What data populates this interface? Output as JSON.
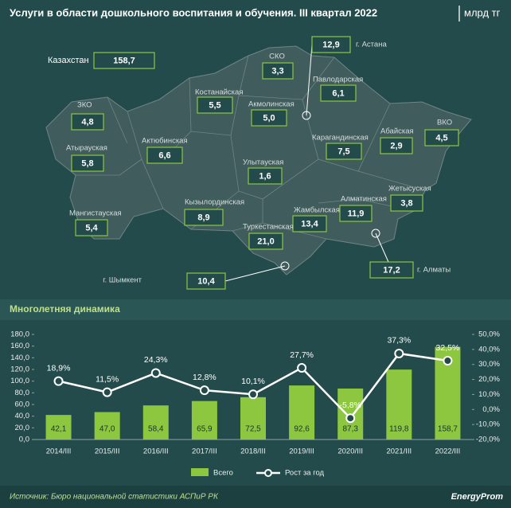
{
  "header": {
    "title": "Услуги в области дошкольного воспитания и обучения. III квартал 2022",
    "unit": "млрд тг"
  },
  "map": {
    "regions": [
      {
        "name": "Казахстан",
        "value": 158.7,
        "value_label": "158,7"
      },
      {
        "name": "СКО",
        "value": 3.3,
        "value_label": "3,3"
      },
      {
        "name": "г. Астана",
        "value": 12.9,
        "value_label": "12,9"
      },
      {
        "name": "Павлодарская",
        "value": 6.1,
        "value_label": "6,1"
      },
      {
        "name": "ЗКО",
        "value": 4.8,
        "value_label": "4,8"
      },
      {
        "name": "Костанайская",
        "value": 5.5,
        "value_label": "5,5"
      },
      {
        "name": "Акмолинская",
        "value": 5.0,
        "value_label": "5,0"
      },
      {
        "name": "Атырауская",
        "value": 5.8,
        "value_label": "5,8"
      },
      {
        "name": "Актюбинская",
        "value": 6.6,
        "value_label": "6,6"
      },
      {
        "name": "Карагандинская",
        "value": 7.5,
        "value_label": "7,5"
      },
      {
        "name": "Абайская",
        "value": 2.9,
        "value_label": "2,9"
      },
      {
        "name": "ВКО",
        "value": 4.5,
        "value_label": "4,5"
      },
      {
        "name": "Улытауская",
        "value": 1.6,
        "value_label": "1,6"
      },
      {
        "name": "Мангистауская",
        "value": 5.4,
        "value_label": "5,4"
      },
      {
        "name": "Кызылординская",
        "value": 8.9,
        "value_label": "8,9"
      },
      {
        "name": "Жетысуская",
        "value": 3.8,
        "value_label": "3,8"
      },
      {
        "name": "Алматинская",
        "value": 11.9,
        "value_label": "11,9"
      },
      {
        "name": "Жамбылская",
        "value": 13.4,
        "value_label": "13,4"
      },
      {
        "name": "Туркестанская",
        "value": 21.0,
        "value_label": "21,0"
      },
      {
        "name": "г. Алматы",
        "value": 17.2,
        "value_label": "17,2"
      },
      {
        "name": "г. Шымкент",
        "value": 10.4,
        "value_label": "10,4"
      }
    ]
  },
  "chart_data": {
    "type": "bar",
    "title": "Многолетняя динамика",
    "categories": [
      "2014/III",
      "2015/III",
      "2016/III",
      "2017/III",
      "2018/III",
      "2019/III",
      "2020/III",
      "2021/III",
      "2022/III"
    ],
    "series": [
      {
        "name": "Всего",
        "type": "bar",
        "color": "#8dc63f",
        "values": [
          42.1,
          47.0,
          58.4,
          65.9,
          72.5,
          92.6,
          87.3,
          119.8,
          158.7
        ],
        "value_labels": [
          "42,1",
          "47,0",
          "58,4",
          "65,9",
          "72,5",
          "92,6",
          "87,3",
          "119,8",
          "158,7"
        ]
      },
      {
        "name": "Рост за год",
        "type": "line",
        "axis": "y2",
        "color": "#ffffff",
        "values": [
          18.9,
          11.5,
          24.3,
          12.8,
          10.1,
          27.7,
          -5.8,
          37.3,
          32.5
        ],
        "value_labels": [
          "18,9%",
          "11,5%",
          "24,3%",
          "12,8%",
          "10,1%",
          "27,7%",
          "-5,8%",
          "37,3%",
          "32,5%"
        ]
      }
    ],
    "ylim": [
      0,
      180
    ],
    "yticks": [
      {
        "value": 0,
        "label": "0,0"
      },
      {
        "value": 20,
        "label": "20,0"
      },
      {
        "value": 40,
        "label": "40,0"
      },
      {
        "value": 60,
        "label": "60,0"
      },
      {
        "value": 80,
        "label": "80,0"
      },
      {
        "value": 100,
        "label": "100,0"
      },
      {
        "value": 120,
        "label": "120,0"
      },
      {
        "value": 140,
        "label": "140,0"
      },
      {
        "value": 160,
        "label": "160,0"
      },
      {
        "value": 180,
        "label": "180,0"
      }
    ],
    "y2lim": [
      -20,
      50
    ],
    "y2ticks": [
      {
        "value": -20,
        "label": "-20,0%"
      },
      {
        "value": -10,
        "label": "-10,0%"
      },
      {
        "value": 0,
        "label": "0,0%"
      },
      {
        "value": 10,
        "label": "10,0%"
      },
      {
        "value": 20,
        "label": "20,0%"
      },
      {
        "value": 30,
        "label": "30,0%"
      },
      {
        "value": 40,
        "label": "40,0%"
      },
      {
        "value": 50,
        "label": "50,0%"
      }
    ],
    "legend": "bottom"
  },
  "footer": {
    "source": "Источник: Бюро национальной статистики АСПиР РК",
    "brand": "EnergyProm"
  }
}
